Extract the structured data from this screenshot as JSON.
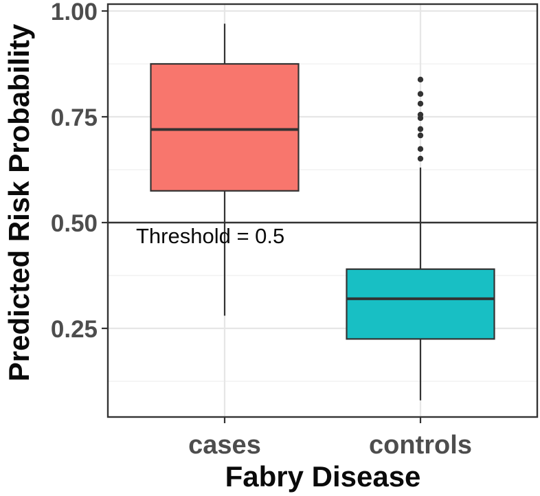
{
  "chart_data": {
    "type": "boxplot",
    "title": "",
    "xlabel": "Fabry Disease",
    "ylabel": "Predicted Risk Probability",
    "categories": [
      "cases",
      "controls"
    ],
    "ylim": [
      0.04,
      1.015
    ],
    "grid": true,
    "legend": false,
    "yticks": [
      {
        "value": 1.0,
        "label": "1.00"
      },
      {
        "value": 0.75,
        "label": "0.75"
      },
      {
        "value": 0.5,
        "label": "0.50"
      },
      {
        "value": 0.25,
        "label": "0.25"
      }
    ],
    "minor_yticks": [
      0.875,
      0.625,
      0.375,
      0.125
    ],
    "series": [
      {
        "name": "cases",
        "fill": "#F8766D",
        "whisker_low": 0.28,
        "q1": 0.575,
        "median": 0.72,
        "q3": 0.875,
        "whisker_high": 0.97,
        "outliers": []
      },
      {
        "name": "controls",
        "fill": "#18BFC4",
        "whisker_low": 0.08,
        "q1": 0.225,
        "median": 0.32,
        "q3": 0.39,
        "whisker_high": 0.63,
        "outliers": [
          0.838,
          0.804,
          0.781,
          0.755,
          0.747,
          0.721,
          0.706,
          0.674,
          0.651
        ]
      }
    ],
    "annotations": [
      {
        "type": "hline",
        "y": 0.5,
        "label": "Threshold = 0.5"
      }
    ]
  },
  "colors": {
    "background": "#ffffff",
    "panel_border": "#333333",
    "grid_major": "#e6e6e6",
    "grid_minor": "#f2f2f2",
    "box_stroke": "#333333",
    "whisker": "#333333",
    "outlier": "#333333",
    "threshold_line": "#333333",
    "tick_mark": "#333333"
  }
}
